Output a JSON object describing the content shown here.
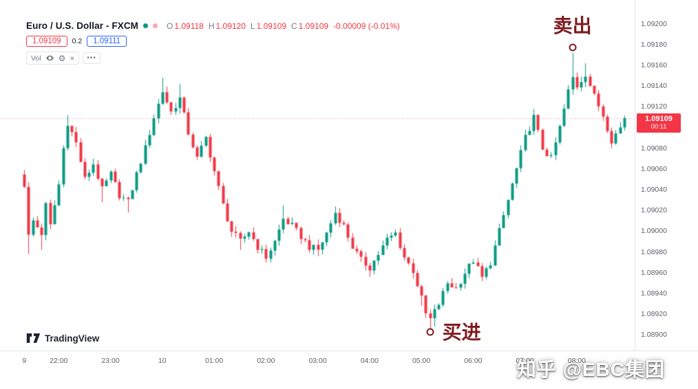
{
  "header": {
    "symbol": "Euro / U.S. Dollar - FXCM",
    "status_dots": [
      "#089981",
      "#f7a9ad"
    ],
    "ohlc": {
      "o_label": "O",
      "o_value": "1.09118",
      "h_label": "H",
      "h_value": "1.09120",
      "l_label": "L",
      "l_value": "1.09109",
      "c_label": "C",
      "c_value": "1.09109",
      "change": "-0.00009 (-0.01%)"
    },
    "bid": "1.09109",
    "spread": "0.2",
    "ask": "1.09111",
    "indicator_label": "Vol",
    "gear_glyph": "⚙",
    "close_glyph": "×",
    "more_glyph": "•••"
  },
  "logo": {
    "text": "TradingView"
  },
  "watermark": "知乎 @EBC集团",
  "annotation_color": "#7d1d21",
  "chart_data": {
    "type": "candlestick",
    "title": "Euro / U.S. Dollar - FXCM",
    "up_color": "#089981",
    "down_color": "#f23645",
    "n_bars": 140,
    "price_axis": {
      "top": 1.09223,
      "bottom": 1.08885,
      "ticks": [
        1.092,
        1.0918,
        1.0916,
        1.0914,
        1.0912,
        1.091,
        1.0908,
        1.0906,
        1.0904,
        1.0902,
        1.09,
        1.0898,
        1.0896,
        1.0894,
        1.0892,
        1.089
      ]
    },
    "time_labels": [
      {
        "bar": 0,
        "label": "9"
      },
      {
        "bar": 8,
        "label": "22:00"
      },
      {
        "bar": 20,
        "label": "23:00"
      },
      {
        "bar": 32,
        "label": "10"
      },
      {
        "bar": 44,
        "label": "01:00"
      },
      {
        "bar": 56,
        "label": "02:00"
      },
      {
        "bar": 68,
        "label": "03:00"
      },
      {
        "bar": 80,
        "label": "04:00"
      },
      {
        "bar": 92,
        "label": "05:00"
      },
      {
        "bar": 104,
        "label": "06:00"
      },
      {
        "bar": 116,
        "label": "07:00"
      },
      {
        "bar": 128,
        "label": "08:00"
      }
    ],
    "close_keyframes": [
      [
        0,
        1.09045
      ],
      [
        1,
        1.08995
      ],
      [
        2,
        1.0901
      ],
      [
        4,
        1.08998
      ],
      [
        5,
        1.09025
      ],
      [
        6,
        1.09005
      ],
      [
        8,
        1.09045
      ],
      [
        9,
        1.0908
      ],
      [
        10,
        1.09105
      ],
      [
        12,
        1.09085
      ],
      [
        14,
        1.0905
      ],
      [
        16,
        1.09065
      ],
      [
        18,
        1.0904
      ],
      [
        20,
        1.09055
      ],
      [
        22,
        1.09035
      ],
      [
        24,
        1.09028
      ],
      [
        26,
        1.09055
      ],
      [
        28,
        1.0908
      ],
      [
        30,
        1.0911
      ],
      [
        32,
        1.09135
      ],
      [
        34,
        1.09115
      ],
      [
        36,
        1.09128
      ],
      [
        38,
        1.09095
      ],
      [
        40,
        1.0907
      ],
      [
        42,
        1.0909
      ],
      [
        44,
        1.09058
      ],
      [
        46,
        1.09025
      ],
      [
        48,
        1.09
      ],
      [
        50,
        1.0899
      ],
      [
        52,
        1.09
      ],
      [
        54,
        1.08985
      ],
      [
        56,
        1.08975
      ],
      [
        58,
        1.0899
      ],
      [
        60,
        1.09012
      ],
      [
        62,
        1.09005
      ],
      [
        64,
        1.08995
      ],
      [
        66,
        1.08985
      ],
      [
        68,
        1.08982
      ],
      [
        70,
        1.08998
      ],
      [
        72,
        1.09018
      ],
      [
        74,
        1.09005
      ],
      [
        76,
        1.08985
      ],
      [
        78,
        1.08972
      ],
      [
        80,
        1.08965
      ],
      [
        82,
        1.08978
      ],
      [
        84,
        1.08992
      ],
      [
        86,
        1.08998
      ],
      [
        88,
        1.08975
      ],
      [
        90,
        1.08962
      ],
      [
        92,
        1.08935
      ],
      [
        93,
        1.0892
      ],
      [
        94,
        1.08915
      ],
      [
        96,
        1.0893
      ],
      [
        98,
        1.0895
      ],
      [
        100,
        1.08945
      ],
      [
        102,
        1.0896
      ],
      [
        104,
        1.08972
      ],
      [
        106,
        1.08955
      ],
      [
        108,
        1.0897
      ],
      [
        110,
        1.09
      ],
      [
        112,
        1.0903
      ],
      [
        114,
        1.0906
      ],
      [
        116,
        1.0909
      ],
      [
        118,
        1.0911
      ],
      [
        120,
        1.0908
      ],
      [
        122,
        1.0907
      ],
      [
        124,
        1.091
      ],
      [
        126,
        1.09135
      ],
      [
        127,
        1.09148
      ],
      [
        128,
        1.0914
      ],
      [
        130,
        1.09152
      ],
      [
        132,
        1.0913
      ],
      [
        134,
        1.09112
      ],
      [
        136,
        1.09088
      ],
      [
        138,
        1.091
      ],
      [
        139,
        1.09109
      ]
    ],
    "wick_spikes": [
      {
        "bar": 1,
        "side": "low",
        "price": 1.08978
      },
      {
        "bar": 4,
        "side": "low",
        "price": 1.08982
      },
      {
        "bar": 10,
        "side": "high",
        "price": 1.09112
      },
      {
        "bar": 18,
        "side": "low",
        "price": 1.09028
      },
      {
        "bar": 24,
        "side": "low",
        "price": 1.09018
      },
      {
        "bar": 32,
        "side": "high",
        "price": 1.09148
      },
      {
        "bar": 36,
        "side": "high",
        "price": 1.09142
      },
      {
        "bar": 50,
        "side": "low",
        "price": 1.08982
      },
      {
        "bar": 56,
        "side": "low",
        "price": 1.0897
      },
      {
        "bar": 60,
        "side": "high",
        "price": 1.09025
      },
      {
        "bar": 68,
        "side": "low",
        "price": 1.08976
      },
      {
        "bar": 72,
        "side": "high",
        "price": 1.09024
      },
      {
        "bar": 80,
        "side": "low",
        "price": 1.08956
      },
      {
        "bar": 86,
        "side": "high",
        "price": 1.09002
      },
      {
        "bar": 92,
        "side": "low",
        "price": 1.08928
      },
      {
        "bar": 94,
        "side": "low",
        "price": 1.08904
      },
      {
        "bar": 95,
        "side": "low",
        "price": 1.08908
      },
      {
        "bar": 118,
        "side": "high",
        "price": 1.09118
      },
      {
        "bar": 127,
        "side": "high",
        "price": 1.09172
      },
      {
        "bar": 130,
        "side": "high",
        "price": 1.09162
      },
      {
        "bar": 136,
        "side": "low",
        "price": 1.0908
      }
    ],
    "current_price": 1.09109,
    "current_price_label": "1.09109",
    "countdown": "00:11",
    "dotted_line_price": 1.09109,
    "markers": [
      {
        "name": "buy",
        "bar": 94,
        "price": 1.08903,
        "label": "买进",
        "label_position": "right"
      },
      {
        "name": "sell",
        "bar": 127,
        "price": 1.09177,
        "label": "卖出",
        "label_position": "above"
      }
    ]
  }
}
